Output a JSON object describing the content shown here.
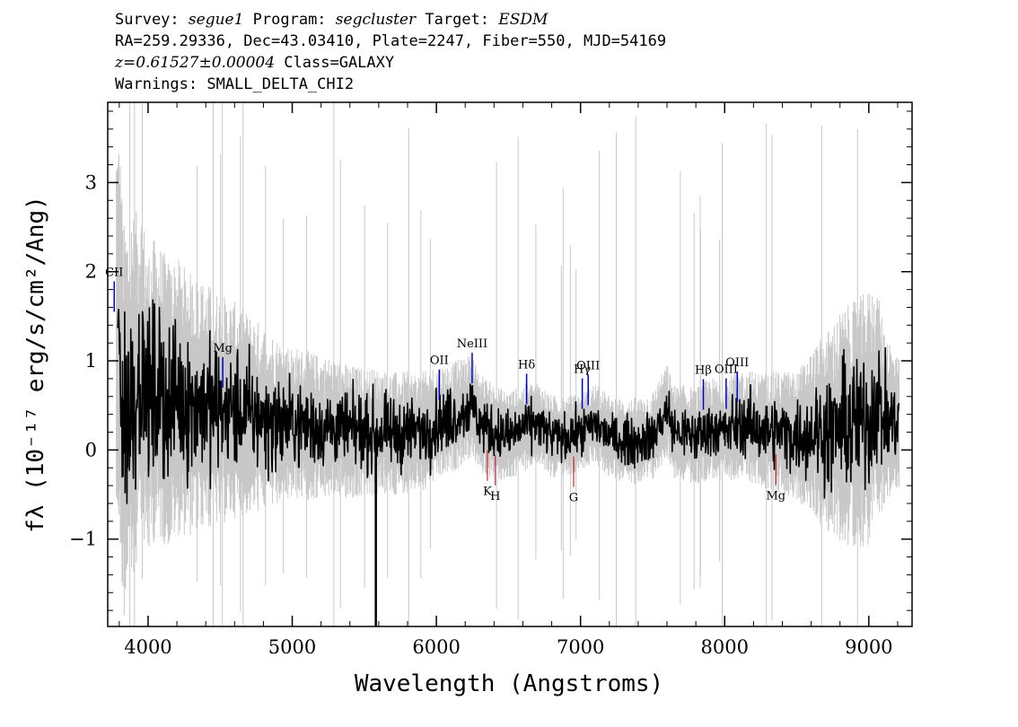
{
  "header": {
    "survey_label": "Survey:",
    "survey": "segue1",
    "program_label": "Program:",
    "program": "segcluster",
    "target_label": "Target:",
    "target": "ESDM",
    "line2": "RA=259.29336, Dec=43.03410, Plate=2247, Fiber=550, MJD=54169",
    "redshift": "z=0.61527±0.00004",
    "class": "Class=GALAXY",
    "warnings": "Warnings: SMALL_DELTA_CHI2"
  },
  "chart_data": {
    "type": "line",
    "title": "",
    "xlabel": "Wavelength (Angstroms)",
    "ylabel": "fλ (10⁻¹⁷ erg/s/cm²/Ang)",
    "xlim": [
      3720,
      9300
    ],
    "ylim": [
      -1.98,
      3.9
    ],
    "x_ticks": [
      4000,
      5000,
      6000,
      7000,
      8000,
      9000
    ],
    "x_tick_labels": [
      "4000",
      "5000",
      "6000",
      "7000",
      "8000",
      "9000"
    ],
    "y_ticks": [
      -1,
      0,
      1,
      2,
      3
    ],
    "y_tick_labels": [
      "−1",
      "0",
      "1",
      "2",
      "3"
    ],
    "grid": false,
    "legend": "none",
    "colors": {
      "flux": "#000000",
      "error": "#c8c8c8",
      "emission": "#0000cc",
      "absorption": "#cc0000"
    },
    "series": [
      {
        "role": "flux",
        "x": [
          3800,
          3830,
          3860,
          3900,
          3950,
          4000,
          4050,
          4100,
          4150,
          4200,
          4300,
          4400,
          4500,
          4600,
          4700,
          4800,
          4900,
          5000,
          5100,
          5200,
          5300,
          5400,
          5500,
          5580,
          5600,
          5700,
          5800,
          5900,
          6000,
          6100,
          6200,
          6250,
          6300,
          6400,
          6500,
          6600,
          6700,
          6800,
          6900,
          7000,
          7100,
          7200,
          7300,
          7400,
          7500,
          7600,
          7650,
          7700,
          7800,
          7900,
          8000,
          8100,
          8200,
          8300,
          8400,
          8500,
          8600,
          8700,
          8800,
          8900,
          9000,
          9050,
          9100,
          9200
        ],
        "y": [
          1.3,
          0.3,
          0.5,
          0.6,
          0.9,
          0.5,
          0.7,
          0.6,
          0.5,
          0.6,
          0.5,
          0.5,
          0.45,
          0.45,
          0.4,
          0.35,
          0.3,
          0.3,
          0.28,
          0.25,
          0.25,
          0.2,
          0.2,
          0.2,
          0.2,
          0.18,
          0.2,
          0.2,
          0.3,
          0.35,
          0.45,
          0.5,
          0.3,
          0.2,
          0.15,
          0.25,
          0.3,
          0.15,
          0.15,
          0.2,
          0.3,
          0.15,
          0.1,
          0.1,
          0.15,
          0.45,
          0.2,
          0.2,
          0.15,
          0.25,
          0.2,
          0.3,
          0.25,
          0.2,
          0.2,
          0.15,
          0.2,
          0.2,
          0.25,
          0.3,
          0.35,
          0.6,
          0.35,
          0.3
        ]
      },
      {
        "role": "error",
        "x": [
          3800,
          4000,
          4500,
          5000,
          5500,
          6000,
          6500,
          7000,
          7500,
          8000,
          8500,
          8800,
          9000,
          9200
        ],
        "y": [
          1.6,
          1.2,
          0.9,
          0.6,
          0.5,
          0.45,
          0.35,
          0.3,
          0.35,
          0.4,
          0.5,
          0.9,
          1.0,
          0.5
        ]
      }
    ],
    "lines": [
      {
        "label": "CII",
        "x": 3765,
        "kind": "emission"
      },
      {
        "label": "Mg",
        "x": 4518,
        "kind": "emission"
      },
      {
        "label": "OII",
        "x": 6020,
        "kind": "emission"
      },
      {
        "label": "NeIII",
        "x": 6248,
        "kind": "emission"
      },
      {
        "label": "Hδ",
        "x": 6626,
        "kind": "emission"
      },
      {
        "label": "Hγ",
        "x": 7012,
        "kind": "emission"
      },
      {
        "label": "OIII",
        "x": 7053,
        "kind": "emission"
      },
      {
        "label": "Hβ",
        "x": 7852,
        "kind": "emission"
      },
      {
        "label": "OIII",
        "x": 8010,
        "kind": "emission"
      },
      {
        "label": "OIII",
        "x": 8087,
        "kind": "emission"
      },
      {
        "label": "K",
        "x": 6354,
        "kind": "absorption"
      },
      {
        "label": "H",
        "x": 6409,
        "kind": "absorption"
      },
      {
        "label": "G",
        "x": 6952,
        "kind": "absorption"
      },
      {
        "label": "Mg",
        "x": 8355,
        "kind": "absorption"
      }
    ]
  }
}
